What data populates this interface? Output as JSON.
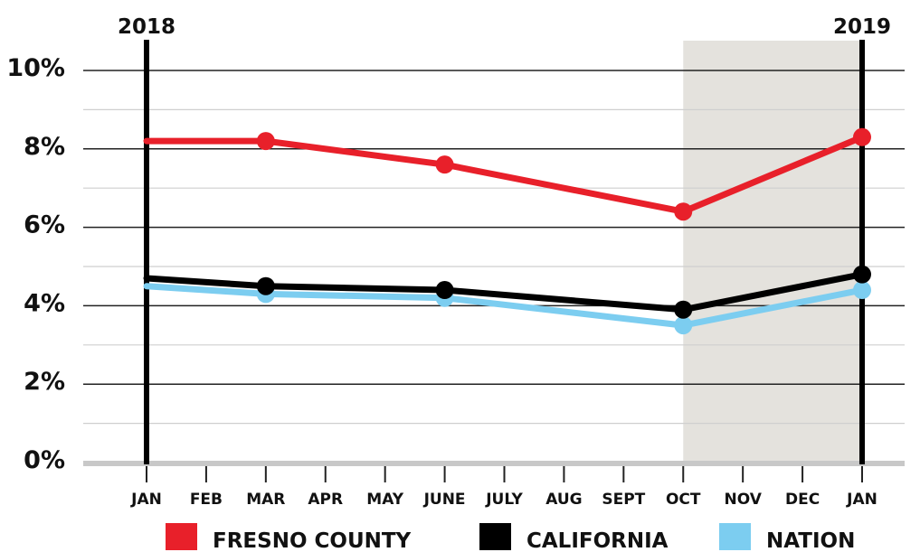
{
  "chart_data": {
    "type": "line",
    "categories": [
      "JAN",
      "FEB",
      "MAR",
      "APR",
      "MAY",
      "JUNE",
      "JULY",
      "AUG",
      "SEPT",
      "OCT",
      "NOV",
      "DEC",
      "JAN"
    ],
    "year_labels": [
      {
        "text": "2018",
        "category_index": 0
      },
      {
        "text": "2019",
        "category_index": 12
      }
    ],
    "y_ticks": [
      "0%",
      "2%",
      "4%",
      "6%",
      "8%",
      "10%"
    ],
    "ylim": [
      0,
      10
    ],
    "grid": true,
    "shaded_range": {
      "from_index": 9,
      "to_index": 12
    },
    "series": [
      {
        "name": "FRESNO COUNTY",
        "color": "#e8202a",
        "points": [
          {
            "i": 0,
            "y": 8.2
          },
          {
            "i": 2,
            "y": 8.2
          },
          {
            "i": 5,
            "y": 7.6
          },
          {
            "i": 9,
            "y": 6.4
          },
          {
            "i": 12,
            "y": 8.3
          }
        ],
        "markers": [
          2,
          5,
          9,
          12
        ]
      },
      {
        "name": "CALIFORNIA",
        "color": "#000000",
        "points": [
          {
            "i": 0,
            "y": 4.7
          },
          {
            "i": 2,
            "y": 4.5
          },
          {
            "i": 5,
            "y": 4.4
          },
          {
            "i": 9,
            "y": 3.9
          },
          {
            "i": 12,
            "y": 4.8
          }
        ],
        "markers": [
          2,
          5,
          9,
          12
        ]
      },
      {
        "name": "NATION",
        "color": "#7ccdf0",
        "points": [
          {
            "i": 0,
            "y": 4.5
          },
          {
            "i": 2,
            "y": 4.3
          },
          {
            "i": 5,
            "y": 4.2
          },
          {
            "i": 9,
            "y": 3.5
          },
          {
            "i": 12,
            "y": 4.4
          }
        ],
        "markers": [
          2,
          5,
          9,
          12
        ]
      }
    ],
    "legend_position": "bottom"
  }
}
